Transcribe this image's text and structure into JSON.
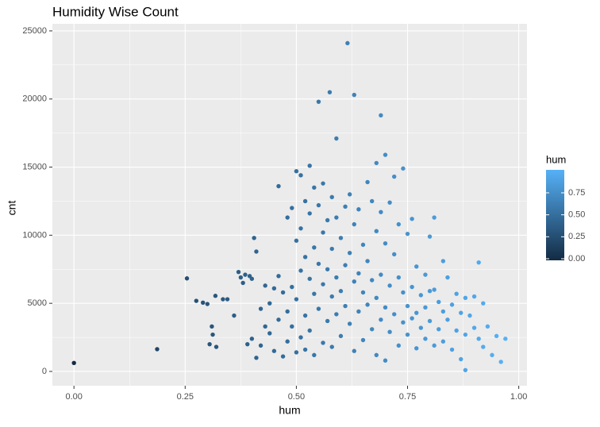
{
  "chart_data": {
    "type": "scatter",
    "title": "Humidity Wise Count",
    "x_label": "hum",
    "y_label": "cnt",
    "xlim": [
      -0.0485,
      1.0185
    ],
    "ylim": [
      -1050,
      25520
    ],
    "xticks": [
      {
        "value": 0,
        "label": "0.00"
      },
      {
        "value": 0.25,
        "label": "0.25"
      },
      {
        "value": 0.5,
        "label": "0.50"
      },
      {
        "value": 0.75,
        "label": "0.75"
      },
      {
        "value": 1,
        "label": "1.00"
      }
    ],
    "yticks": [
      0,
      5000,
      10000,
      15000,
      20000,
      25000
    ],
    "xminor": [
      0.125,
      0.375,
      0.625,
      0.875
    ],
    "yminor": [
      2500,
      7500,
      12500,
      17500,
      22500
    ],
    "grid": true,
    "color_title": "hum",
    "color_low": "#132B43",
    "color_high": "#56B1F7",
    "color_limits": [
      0,
      0.97
    ],
    "color_ticks": [
      {
        "value": 0,
        "label": "0.00"
      },
      {
        "value": 0.25,
        "label": "0.25"
      },
      {
        "value": 0.5,
        "label": "0.50"
      },
      {
        "value": 0.75,
        "label": "0.75"
      }
    ],
    "x": [
      0,
      0.187,
      0.254,
      0.275,
      0.29,
      0.3,
      0.305,
      0.31,
      0.312,
      0.32,
      0.318,
      0.335,
      0.345,
      0.36,
      0.37,
      0.375,
      0.38,
      0.385,
      0.39,
      0.395,
      0.4,
      0.405,
      0.41,
      0.4,
      0.41,
      0.42,
      0.42,
      0.43,
      0.43,
      0.44,
      0.44,
      0.45,
      0.45,
      0.46,
      0.46,
      0.46,
      0.47,
      0.47,
      0.48,
      0.48,
      0.48,
      0.49,
      0.49,
      0.49,
      0.5,
      0.5,
      0.5,
      0.5,
      0.51,
      0.51,
      0.51,
      0.51,
      0.52,
      0.52,
      0.52,
      0.52,
      0.53,
      0.53,
      0.53,
      0.53,
      0.54,
      0.54,
      0.54,
      0.54,
      0.55,
      0.55,
      0.55,
      0.55,
      0.56,
      0.56,
      0.56,
      0.56,
      0.575,
      0.57,
      0.57,
      0.57,
      0.58,
      0.58,
      0.58,
      0.58,
      0.59,
      0.59,
      0.59,
      0.59,
      0.6,
      0.6,
      0.6,
      0.615,
      0.61,
      0.61,
      0.61,
      0.62,
      0.62,
      0.62,
      0.63,
      0.63,
      0.63,
      0.63,
      0.64,
      0.64,
      0.64,
      0.65,
      0.65,
      0.65,
      0.66,
      0.66,
      0.66,
      0.67,
      0.67,
      0.67,
      0.68,
      0.68,
      0.68,
      0.68,
      0.69,
      0.69,
      0.69,
      0.69,
      0.7,
      0.7,
      0.7,
      0.7,
      0.71,
      0.71,
      0.71,
      0.72,
      0.72,
      0.72,
      0.73,
      0.73,
      0.73,
      0.74,
      0.74,
      0.74,
      0.75,
      0.75,
      0.75,
      0.76,
      0.76,
      0.76,
      0.77,
      0.77,
      0.77,
      0.78,
      0.78,
      0.79,
      0.79,
      0.79,
      0.8,
      0.8,
      0.8,
      0.81,
      0.81,
      0.81,
      0.82,
      0.82,
      0.83,
      0.83,
      0.83,
      0.84,
      0.84,
      0.85,
      0.85,
      0.86,
      0.86,
      0.87,
      0.87,
      0.88,
      0.88,
      0.88,
      0.89,
      0.9,
      0.9,
      0.91,
      0.91,
      0.92,
      0.92,
      0.93,
      0.94,
      0.95,
      0.96,
      0.97
    ],
    "values": [
      623,
      1635,
      6830,
      5180,
      5050,
      4950,
      2000,
      3300,
      2700,
      1800,
      5550,
      5300,
      5300,
      4100,
      7300,
      6900,
      6500,
      7100,
      2000,
      7000,
      6800,
      9800,
      8800,
      2400,
      1000,
      4600,
      1900,
      3300,
      6300,
      5000,
      2800,
      6100,
      1500,
      13600,
      7000,
      3800,
      5800,
      1100,
      11300,
      4400,
      2200,
      12000,
      6200,
      3300,
      14700,
      9600,
      5300,
      1400,
      14400,
      10500,
      7400,
      2500,
      12500,
      8400,
      4100,
      1600,
      15100,
      11600,
      6800,
      3000,
      13500,
      9100,
      5700,
      1200,
      19800,
      12200,
      7900,
      4600,
      13800,
      10200,
      6400,
      2100,
      20500,
      11100,
      7500,
      3700,
      12800,
      9000,
      5500,
      1800,
      17100,
      11300,
      6900,
      4200,
      9800,
      5900,
      2600,
      24100,
      12100,
      7800,
      4800,
      13000,
      8700,
      3500,
      20300,
      10800,
      6600,
      1500,
      11900,
      7200,
      4400,
      9300,
      5800,
      2300,
      13900,
      8100,
      4900,
      12500,
      6700,
      3100,
      15300,
      10300,
      5400,
      1200,
      18800,
      11700,
      7100,
      3800,
      15900,
      9400,
      4700,
      800,
      12400,
      6300,
      2900,
      14300,
      8600,
      4200,
      10800,
      6900,
      1900,
      14900,
      5800,
      3600,
      10100,
      4800,
      2700,
      11200,
      6200,
      3900,
      7700,
      4300,
      1700,
      5600,
      3200,
      7100,
      4700,
      2400,
      9900,
      5900,
      3700,
      11300,
      6000,
      1900,
      5100,
      3100,
      8100,
      4400,
      2200,
      6900,
      3800,
      4900,
      1600,
      5700,
      3000,
      4300,
      900,
      5400,
      2700,
      100,
      4100,
      3200,
      5500,
      8000,
      2400,
      1800,
      5000,
      3300,
      1200,
      2600,
      700,
      2400
    ]
  }
}
